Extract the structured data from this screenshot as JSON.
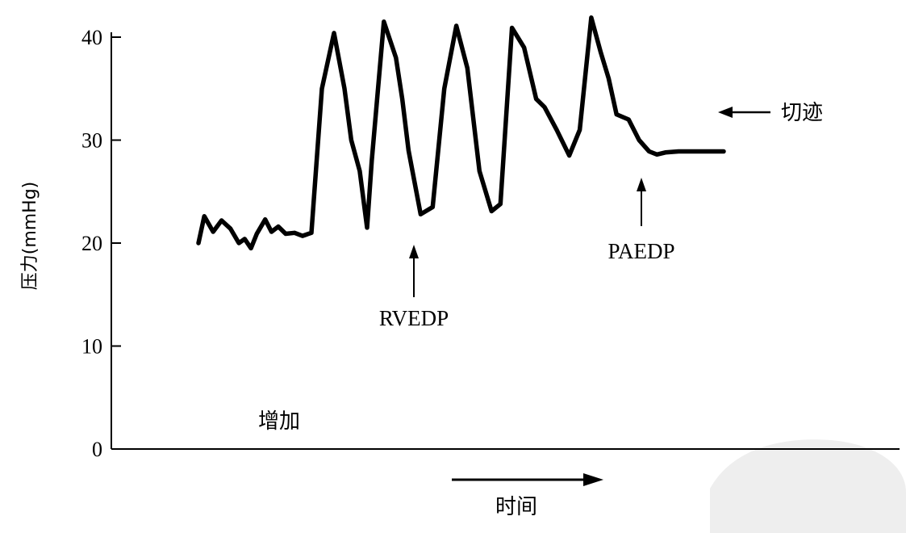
{
  "chart_data": {
    "type": "line",
    "ylabel": "压力(mmHg)",
    "xlabel": "时间",
    "ylim": [
      0,
      40
    ],
    "yticks": [
      0,
      10,
      20,
      30,
      40
    ],
    "grid": false,
    "series": [
      {
        "x": [
          0.0,
          0.011,
          0.028,
          0.044,
          0.061,
          0.077,
          0.088,
          0.1,
          0.111,
          0.127,
          0.139,
          0.152,
          0.166,
          0.183,
          0.198,
          0.215,
          0.235,
          0.258,
          0.278,
          0.291,
          0.307,
          0.321,
          0.33,
          0.353,
          0.376,
          0.388,
          0.4,
          0.423,
          0.446,
          0.468,
          0.491,
          0.512,
          0.535,
          0.558,
          0.575,
          0.597,
          0.62,
          0.643,
          0.659,
          0.682,
          0.706,
          0.726,
          0.748,
          0.766,
          0.781,
          0.796,
          0.819,
          0.839,
          0.858,
          0.873,
          0.889,
          0.914,
          0.937,
          0.962,
          0.98,
          1.0
        ],
        "y": [
          20.0,
          22.6,
          21.1,
          22.2,
          21.4,
          20.0,
          20.4,
          19.5,
          20.9,
          22.3,
          21.1,
          21.6,
          20.9,
          21.0,
          20.7,
          21.0,
          35.0,
          40.4,
          35.0,
          30.0,
          27.0,
          21.5,
          28.0,
          41.5,
          38.0,
          34.0,
          29.0,
          22.8,
          23.5,
          35.0,
          41.1,
          37.0,
          27.0,
          23.1,
          23.8,
          40.9,
          39.0,
          34.0,
          33.2,
          31.0,
          28.5,
          31.0,
          41.9,
          38.5,
          36.0,
          32.5,
          32.0,
          30.0,
          28.9,
          28.6,
          28.8,
          28.9,
          28.9,
          28.9,
          28.9,
          28.9
        ]
      }
    ],
    "annotations": [
      {
        "label": "RVEDP",
        "x": 0.321,
        "y": 21.5,
        "arrow": "up"
      },
      {
        "label": "PAEDP",
        "x": 0.706,
        "y": 28.5,
        "arrow": "up"
      },
      {
        "label": "切迹",
        "x": 0.98,
        "y": 33.0,
        "arrow": "left"
      },
      {
        "label": "增加",
        "x": 0.15,
        "y": 2.5,
        "arrow": "none"
      },
      {
        "label": "时间",
        "x": 0.5,
        "y": -5.0,
        "arrow": "right"
      }
    ]
  }
}
